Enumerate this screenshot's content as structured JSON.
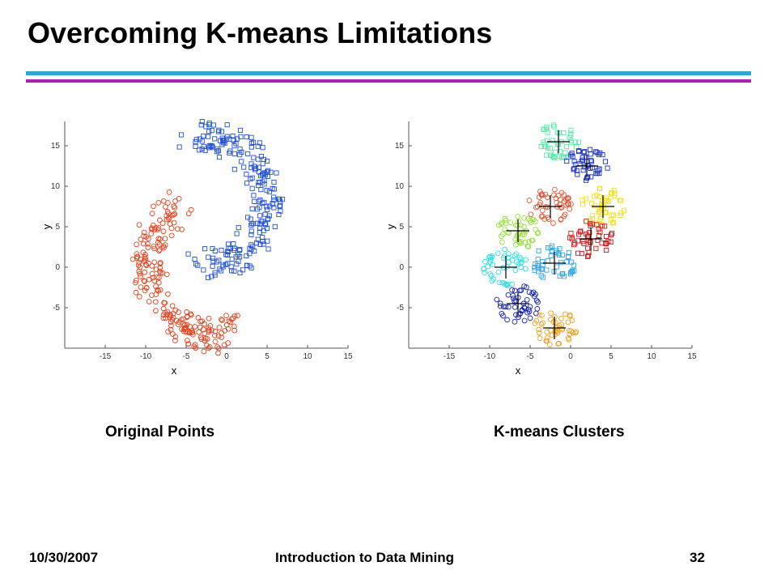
{
  "slide": {
    "title": "Overcoming K-means Limitations",
    "footer_date": "10/30/2007",
    "footer_course": "Introduction to Data Mining",
    "footer_page": "32",
    "rule_colors": [
      "#2aa8d8",
      "#b01cb8"
    ]
  },
  "chart_data": [
    {
      "type": "scatter",
      "caption": "Original Points",
      "xlabel": "x",
      "ylabel": "y",
      "xlim": [
        -20,
        15
      ],
      "ylim": [
        -10,
        18
      ],
      "xticks": [
        -15,
        -10,
        -5,
        0,
        5,
        10,
        15
      ],
      "yticks": [
        -5,
        0,
        5,
        10,
        15
      ],
      "grid": false,
      "series": [
        {
          "color": "#e8401c",
          "marker": "circle",
          "description_points": [
            [
              -5.5,
              7.5
            ],
            [
              -7.5,
              6
            ],
            [
              -8.8,
              4
            ],
            [
              -9.5,
              2
            ],
            [
              -9.8,
              0
            ],
            [
              -9.5,
              -2
            ],
            [
              -8.5,
              -4.5
            ],
            [
              -6.5,
              -6.5
            ],
            [
              -4,
              -8
            ],
            [
              -1.5,
              -8.8
            ],
            [
              0,
              -7
            ]
          ]
        },
        {
          "color": "#2050d8",
          "marker": "square",
          "description_points": [
            [
              -4,
              16.5
            ],
            [
              -1,
              16
            ],
            [
              1.5,
              15
            ],
            [
              3.5,
              13
            ],
            [
              4.8,
              10.5
            ],
            [
              5.2,
              8
            ],
            [
              4.8,
              5.5
            ],
            [
              3.5,
              3.5
            ],
            [
              1.5,
              1.5
            ],
            [
              -1,
              0.5
            ],
            [
              -3.5,
              0.5
            ]
          ]
        }
      ]
    },
    {
      "type": "scatter",
      "caption": "K-means Clusters",
      "xlabel": "x",
      "ylabel": "y",
      "xlim": [
        -20,
        15
      ],
      "ylim": [
        -10,
        18
      ],
      "xticks": [
        -15,
        -10,
        -5,
        0,
        5,
        10,
        15
      ],
      "yticks": [
        -5,
        0,
        5,
        10,
        15
      ],
      "grid": false,
      "clusters": [
        {
          "color": "#5ce8a8",
          "marker": "square",
          "center": [
            -1.5,
            15.5
          ]
        },
        {
          "color": "#1830c8",
          "marker": "square",
          "center": [
            2.0,
            12.5
          ]
        },
        {
          "color": "#f0e020",
          "marker": "square",
          "center": [
            4.0,
            7.5
          ]
        },
        {
          "color": "#d01818",
          "marker": "square",
          "center": [
            2.5,
            3.5
          ]
        },
        {
          "color": "#30a8e8",
          "marker": "square",
          "center": [
            -2.0,
            0.5
          ]
        },
        {
          "color": "#e05838",
          "marker": "circle",
          "center": [
            -2.5,
            7.5
          ]
        },
        {
          "color": "#98e040",
          "marker": "circle",
          "center": [
            -6.5,
            4.5
          ]
        },
        {
          "color": "#30e0e8",
          "marker": "circle",
          "center": [
            -8.0,
            0.0
          ]
        },
        {
          "color": "#1020b0",
          "marker": "circle",
          "center": [
            -6.5,
            -4.5
          ]
        },
        {
          "color": "#f0a020",
          "marker": "circle",
          "center": [
            -2.0,
            -7.5
          ]
        }
      ]
    }
  ]
}
